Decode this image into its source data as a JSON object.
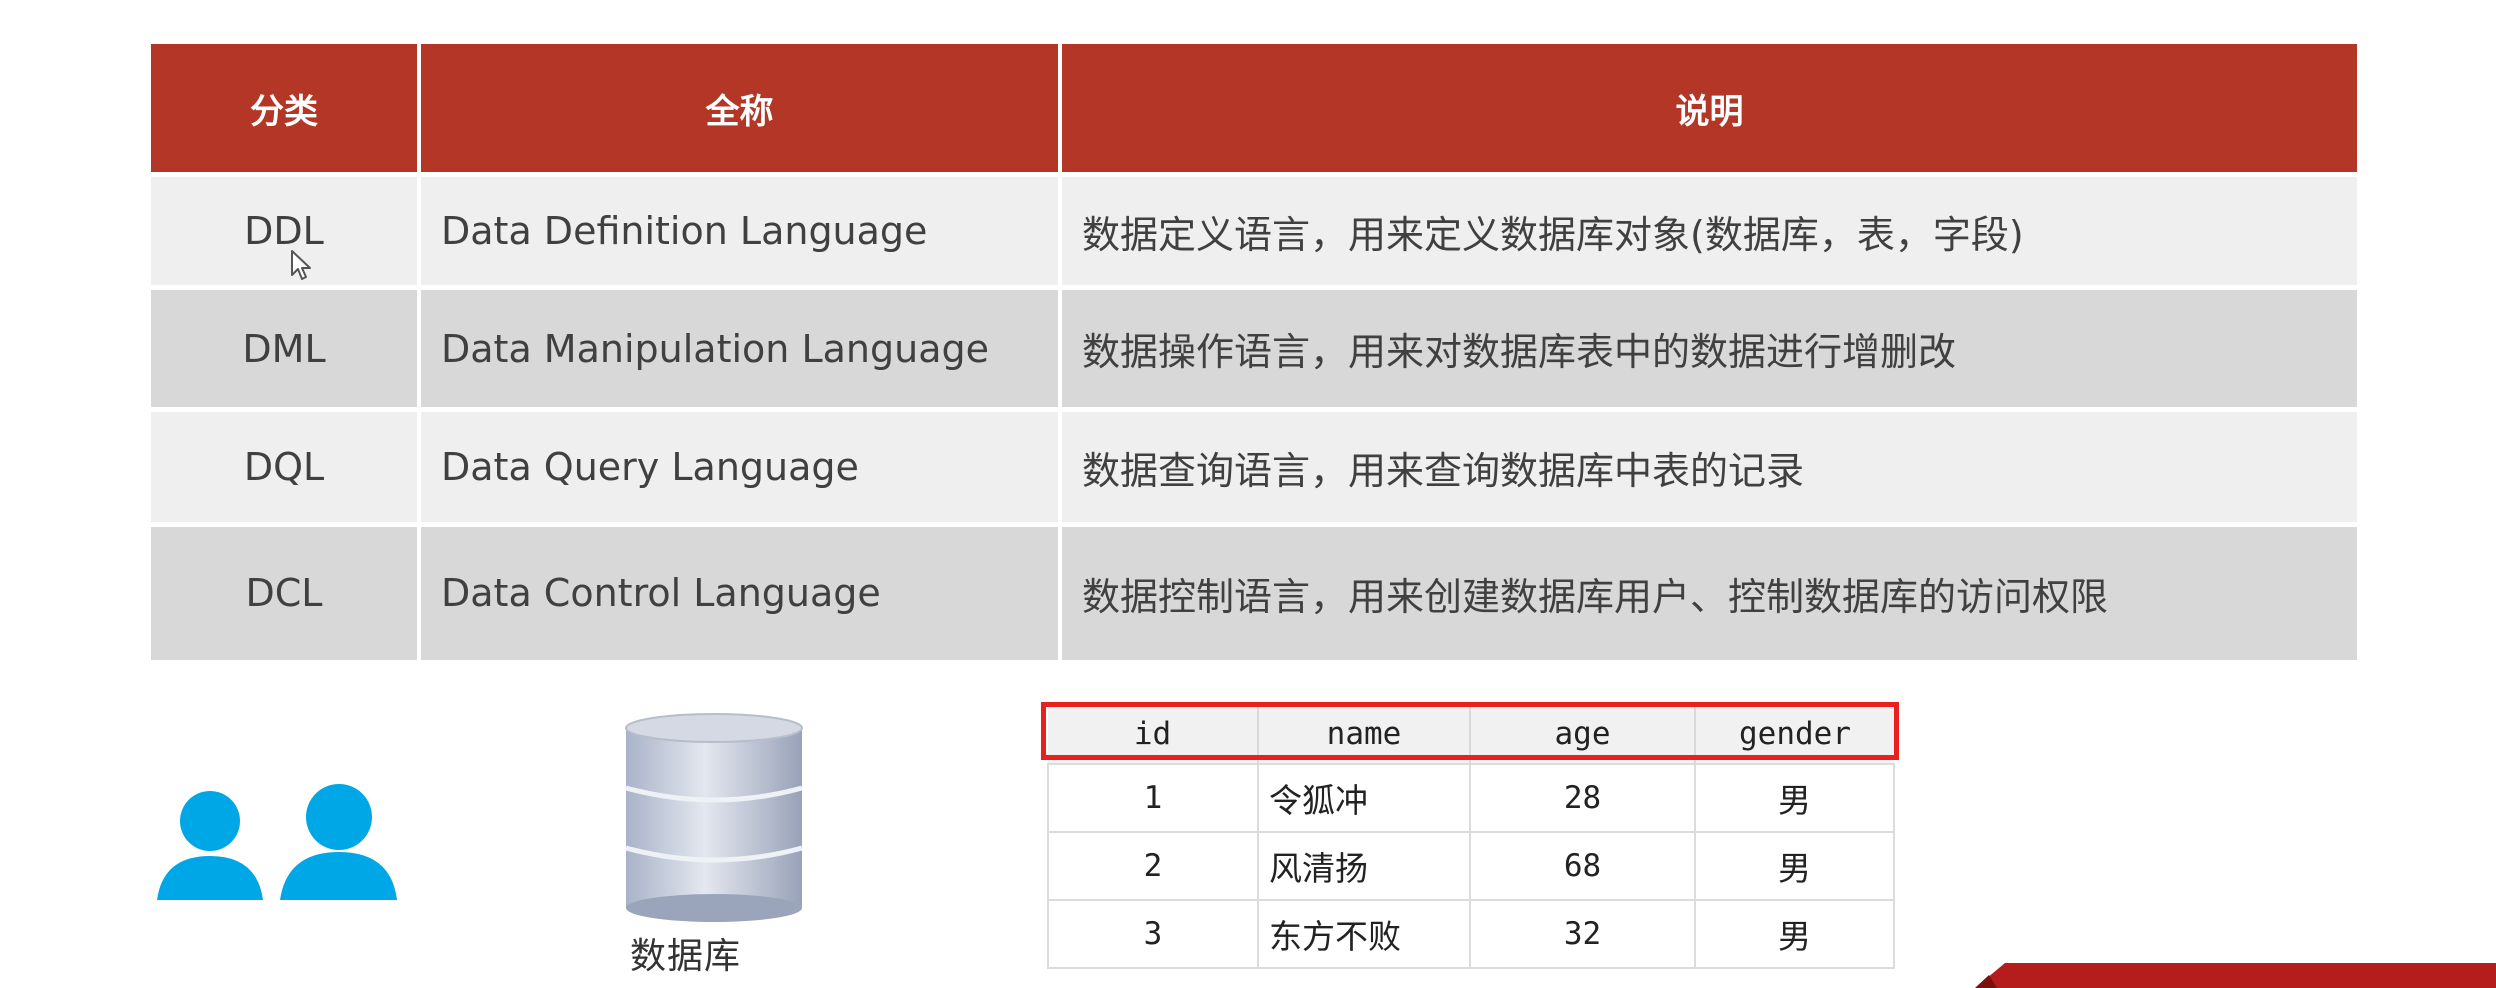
{
  "sql_table": {
    "headers": [
      "分类",
      "全称",
      "说明"
    ],
    "rows": [
      {
        "abbr": "DDL",
        "full": "Data Definition Language",
        "desc": "数据定义语言，用来定义数据库对象(数据库，表，字段)"
      },
      {
        "abbr": "DML",
        "full": "Data Manipulation Language",
        "desc": "数据操作语言，用来对数据库表中的数据进行增删改"
      },
      {
        "abbr": "DQL",
        "full": "Data Query Language",
        "desc": "数据查询语言，用来查询数据库中表的记录"
      },
      {
        "abbr": "DCL",
        "full": "Data Control Language",
        "desc": "数据控制语言，用来创建数据库用户、控制数据库的访问权限"
      }
    ]
  },
  "icons": {
    "users": "users-icon",
    "database": "database-icon",
    "cursor": "mouse-cursor-icon"
  },
  "database_label": "数据库",
  "data_table": {
    "columns": [
      "id",
      "name",
      "age",
      "gender"
    ],
    "rows": [
      {
        "id": "1",
        "name": "令狐冲",
        "age": "28",
        "gender": "男"
      },
      {
        "id": "2",
        "name": "风清扬",
        "age": "68",
        "gender": "男"
      },
      {
        "id": "3",
        "name": "东方不败",
        "age": "32",
        "gender": "男"
      }
    ]
  },
  "colors": {
    "header_red": "#b33626",
    "row_light": "#efefef",
    "row_dark": "#d8d8d8",
    "users_blue": "#00a7e6",
    "highlight_red": "#e8201e"
  }
}
